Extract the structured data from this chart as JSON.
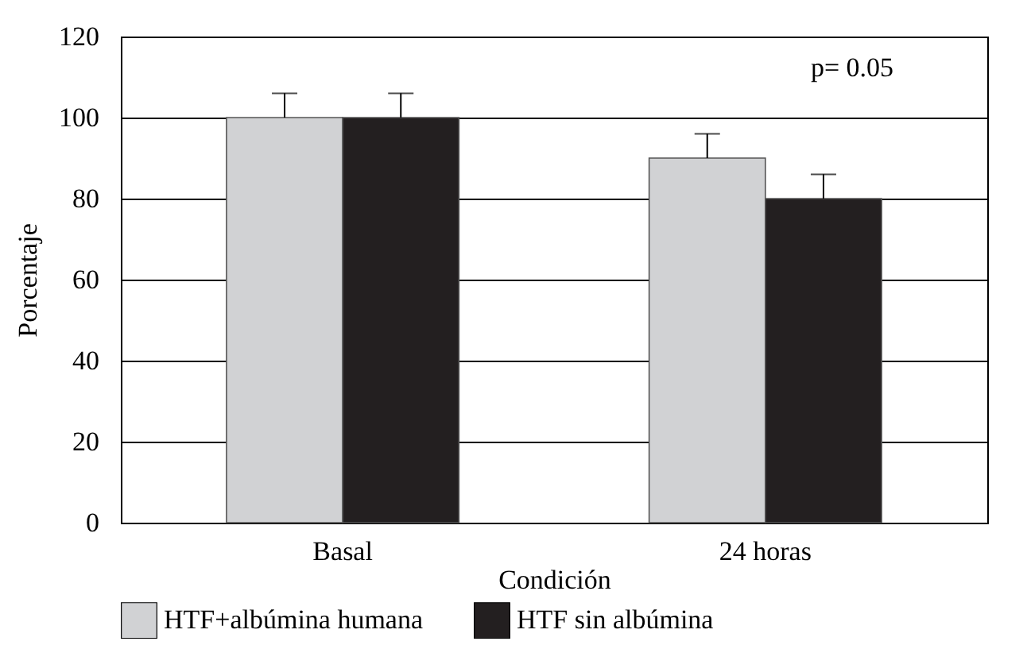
{
  "chart_data": {
    "type": "bar",
    "xlabel": "Condición",
    "ylabel": "Porcentaje",
    "categories": [
      "Basal",
      "24 horas"
    ],
    "series": [
      {
        "name": "HTF+albúmina humana",
        "color": "#d1d2d4",
        "values": [
          100,
          90
        ],
        "errors": [
          [
            100,
            106
          ],
          [
            90,
            96
          ]
        ]
      },
      {
        "name": "HTF sin albúmina",
        "color": "#231f20",
        "values": [
          100,
          80
        ],
        "errors": [
          [
            100,
            106
          ],
          [
            80,
            86
          ]
        ]
      }
    ],
    "ylim": [
      0,
      120
    ],
    "yticks": [
      0,
      20,
      40,
      60,
      80,
      100,
      120
    ],
    "grid": "y",
    "legend": "bottom",
    "annotations": [
      "p= 0.05"
    ]
  }
}
